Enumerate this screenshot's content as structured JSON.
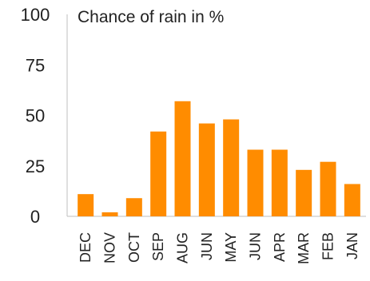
{
  "chart_data": {
    "type": "bar",
    "title": "Chance of rain in %",
    "xlabel": "",
    "ylabel": "",
    "categories": [
      "DEC",
      "NOV",
      "OCT",
      "SEP",
      "AUG",
      "JUN",
      "MAY",
      "JUN",
      "APR",
      "MAR",
      "FEB",
      "JAN"
    ],
    "values": [
      11,
      2,
      9,
      42,
      57,
      46,
      48,
      33,
      33,
      23,
      27,
      16
    ],
    "ylim": [
      0,
      100
    ],
    "yticks": [
      "0",
      "25",
      "50",
      "75",
      "100"
    ],
    "grid": false,
    "legend": "none",
    "bar_color": "#ff8c00",
    "axis_color": "#bfbfbf"
  }
}
